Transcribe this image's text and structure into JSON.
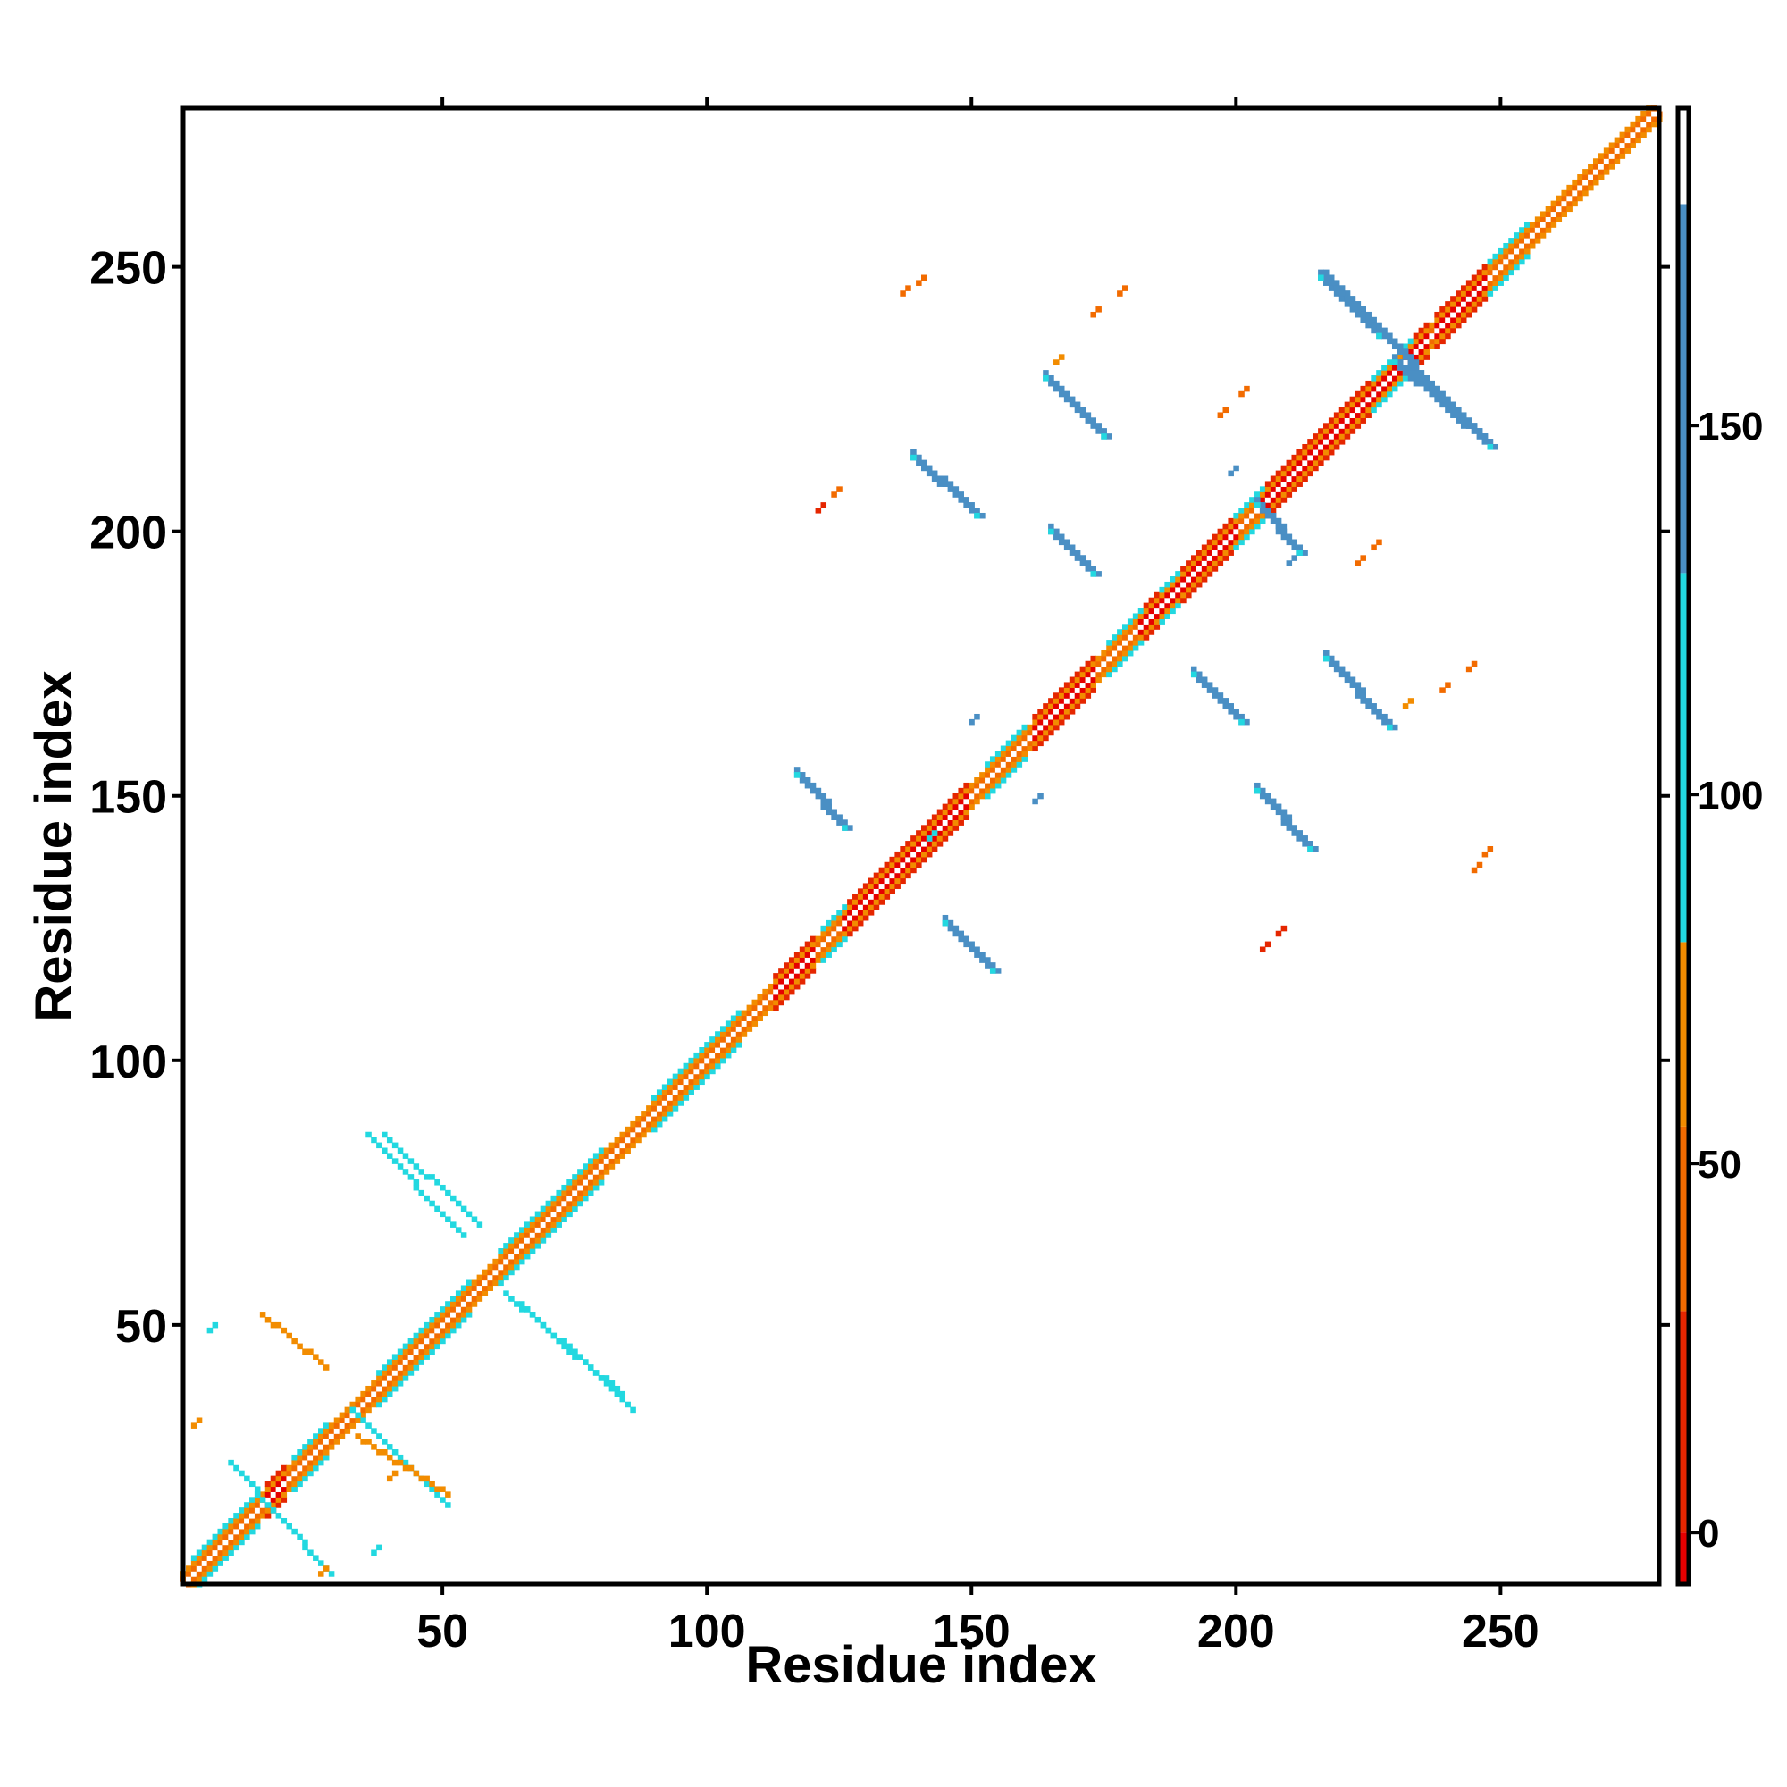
{
  "chart_data": {
    "type": "heatmap",
    "title": "",
    "xlabel": "Residue index",
    "ylabel": "Residue index",
    "xlim": [
      1,
      280
    ],
    "ylim": [
      1,
      280
    ],
    "x_ticks": [
      50,
      100,
      150,
      200,
      250
    ],
    "y_ticks": [
      50,
      100,
      150,
      200,
      250
    ],
    "x_tick_labels": [
      "50",
      "100",
      "150",
      "200",
      "250"
    ],
    "y_tick_labels": [
      "50",
      "100",
      "150",
      "200",
      "250"
    ],
    "top_and_right_ticks": true,
    "grid": false,
    "colorbar": {
      "range": [
        -7,
        193
      ],
      "ticks": [
        0,
        50,
        100,
        150
      ],
      "tick_labels": [
        "0",
        "50",
        "100",
        "150"
      ],
      "bands": [
        {
          "from": -7,
          "to": 0,
          "color": "#e50000"
        },
        {
          "from": 0,
          "to": 30,
          "color": "#e52600"
        },
        {
          "from": 30,
          "to": 55,
          "color": "#f26b00"
        },
        {
          "from": 55,
          "to": 80,
          "color": "#f28c00"
        },
        {
          "from": 80,
          "to": 130,
          "color": "#22d8e0"
        },
        {
          "from": 130,
          "to": 180,
          "color": "#4a8fc4"
        },
        {
          "from": 180,
          "to": 193,
          "color": "#ffffff"
        }
      ]
    },
    "diagonal_band": {
      "start": 1,
      "end": 280,
      "half_width": 2.5
    },
    "diagonal_red_ranges": [
      [
        17,
        20
      ],
      [
        113,
        120
      ],
      [
        126,
        149
      ],
      [
        162,
        173
      ],
      [
        182,
        200
      ],
      [
        205,
        236
      ],
      [
        238,
        247
      ]
    ],
    "diagonal_cyan_ranges": [
      [
        3,
        15
      ],
      [
        22,
        28
      ],
      [
        38,
        55
      ],
      [
        61,
        80
      ],
      [
        90,
        106
      ],
      [
        122,
        126
      ],
      [
        153,
        160
      ],
      [
        176,
        182
      ],
      [
        186,
        189
      ],
      [
        200,
        205
      ],
      [
        226,
        233
      ],
      [
        248,
        255
      ]
    ],
    "contact_segments": [
      {
        "x1": 117,
        "y1": 154,
        "x2": 126,
        "y2": 144,
        "value": 150
      },
      {
        "x1": 145,
        "y1": 126,
        "x2": 154,
        "y2": 117,
        "value": 150
      },
      {
        "x1": 139,
        "y1": 214,
        "x2": 151,
        "y2": 203,
        "value": 150
      },
      {
        "x1": 164,
        "y1": 229,
        "x2": 175,
        "y2": 218,
        "value": 150
      },
      {
        "x1": 165,
        "y1": 200,
        "x2": 173,
        "y2": 192,
        "value": 150
      },
      {
        "x1": 192,
        "y1": 173,
        "x2": 201,
        "y2": 164,
        "value": 150
      },
      {
        "x1": 204,
        "y1": 151,
        "x2": 214,
        "y2": 140,
        "value": 150
      },
      {
        "x1": 217,
        "y1": 176,
        "x2": 229,
        "y2": 163,
        "value": 150
      },
      {
        "x1": 217,
        "y1": 248,
        "x2": 248,
        "y2": 216,
        "value": 150
      },
      {
        "x1": 216,
        "y1": 248,
        "x2": 227,
        "y2": 237,
        "value": 150
      },
      {
        "x1": 230,
        "y1": 232,
        "x2": 248,
        "y2": 216,
        "value": 150
      },
      {
        "x1": 204,
        "y1": 205,
        "x2": 212,
        "y2": 196,
        "value": 150
      },
      {
        "x1": 36,
        "y1": 86,
        "x2": 54,
        "y2": 67,
        "value": 100
      },
      {
        "x1": 39,
        "y1": 86,
        "x2": 57,
        "y2": 69,
        "value": 100
      },
      {
        "x1": 65,
        "y1": 54,
        "x2": 86,
        "y2": 34,
        "value": 100
      },
      {
        "x1": 62,
        "y1": 56,
        "x2": 84,
        "y2": 37,
        "value": 100
      },
      {
        "x1": 16,
        "y1": 52,
        "x2": 28,
        "y2": 42,
        "value": 65
      },
      {
        "x1": 33,
        "y1": 34,
        "x2": 51,
        "y2": 16,
        "value": 100
      },
      {
        "x1": 10,
        "y1": 24,
        "x2": 29,
        "y2": 3,
        "value": 100
      },
      {
        "x1": 34,
        "y1": 29,
        "x2": 51,
        "y2": 18,
        "value": 65
      }
    ],
    "contact_points": [
      {
        "x": 137,
        "y": 245,
        "value": 45
      },
      {
        "x": 140,
        "y": 247,
        "value": 45
      },
      {
        "x": 166,
        "y": 232,
        "value": 65
      },
      {
        "x": 173,
        "y": 241,
        "value": 45
      },
      {
        "x": 178,
        "y": 245,
        "value": 45
      },
      {
        "x": 197,
        "y": 222,
        "value": 45
      },
      {
        "x": 201,
        "y": 226,
        "value": 45
      },
      {
        "x": 121,
        "y": 204,
        "value": 10
      },
      {
        "x": 124,
        "y": 207,
        "value": 45
      },
      {
        "x": 223,
        "y": 194,
        "value": 45
      },
      {
        "x": 226,
        "y": 197,
        "value": 45
      },
      {
        "x": 232,
        "y": 167,
        "value": 65
      },
      {
        "x": 239,
        "y": 170,
        "value": 45
      },
      {
        "x": 244,
        "y": 174,
        "value": 45
      },
      {
        "x": 245,
        "y": 136,
        "value": 45
      },
      {
        "x": 247,
        "y": 139,
        "value": 45
      },
      {
        "x": 205,
        "y": 121,
        "value": 10
      },
      {
        "x": 208,
        "y": 124,
        "value": 10
      },
      {
        "x": 199,
        "y": 211,
        "value": 150
      },
      {
        "x": 210,
        "y": 194,
        "value": 150
      },
      {
        "x": 150,
        "y": 164,
        "value": 150
      },
      {
        "x": 162,
        "y": 149,
        "value": 150
      },
      {
        "x": 142,
        "y": 142,
        "value": 100
      },
      {
        "x": 6,
        "y": 49,
        "value": 100
      },
      {
        "x": 3,
        "y": 31,
        "value": 65
      },
      {
        "x": 27,
        "y": 3,
        "value": 65
      },
      {
        "x": 37,
        "y": 7,
        "value": 100
      },
      {
        "x": 40,
        "y": 21,
        "value": 65
      }
    ]
  }
}
